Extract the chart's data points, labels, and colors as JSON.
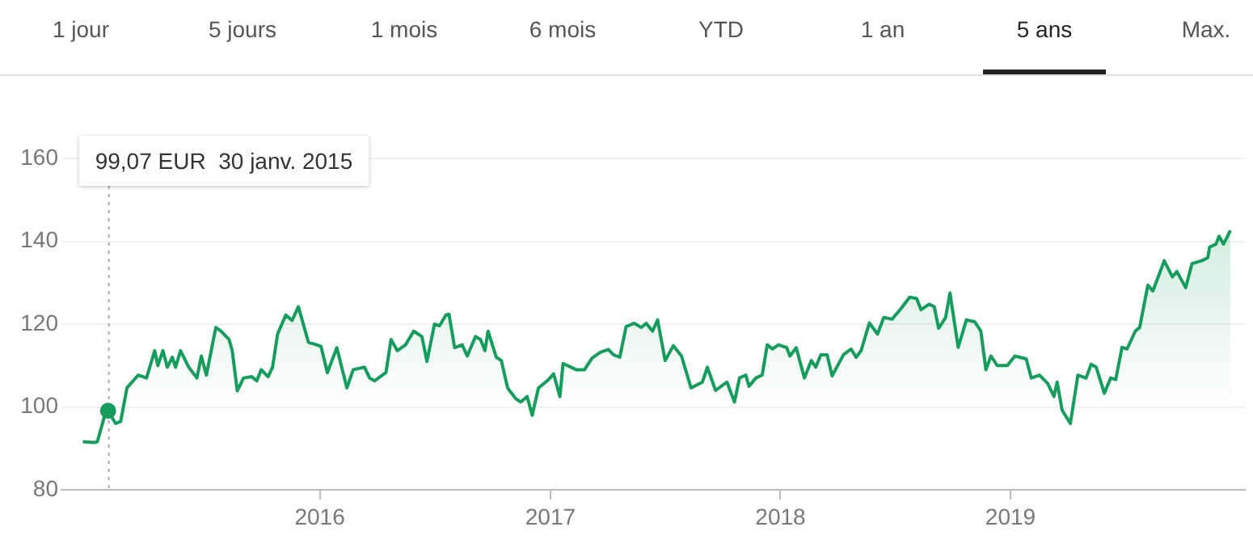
{
  "chart_data": {
    "type": "area",
    "annotations": [
      "1 jour",
      "5 jours",
      "1 mois",
      "6 mois",
      "YTD",
      "1 an",
      "5 ans",
      "Max."
    ],
    "ref_lines": [
      {
        "axis": "x",
        "value": "2015-01-30",
        "label": "99,07 EUR  30 janv. 2015",
        "color": "#aaaaaa",
        "line_style": "dotted"
      }
    ],
    "x": [
      "2014-12-21",
      "2015-01-08",
      "2015-01-13",
      "2015-01-26",
      "2015-01-30",
      "2015-02-11",
      "2015-02-19",
      "2015-03-01",
      "2015-03-19",
      "2015-04-01",
      "2015-04-14",
      "2015-04-19",
      "2015-04-27",
      "2015-05-04",
      "2015-05-12",
      "2015-05-17",
      "2015-05-25",
      "2015-06-07",
      "2015-06-20",
      "2015-06-27",
      "2015-07-05",
      "2015-07-20",
      "2015-07-28",
      "2015-08-10",
      "2015-08-15",
      "2015-08-23",
      "2015-09-02",
      "2015-09-15",
      "2015-09-23",
      "2015-09-30",
      "2015-10-11",
      "2015-10-18",
      "2015-10-26",
      "2015-11-08",
      "2015-11-18",
      "2015-11-28",
      "2015-12-14",
      "2015-12-27",
      "2016-01-03",
      "2016-01-13",
      "2016-01-28",
      "2016-02-13",
      "2016-02-23",
      "2016-03-12",
      "2016-03-20",
      "2016-03-28",
      "2016-04-15",
      "2016-04-23",
      "2016-05-03",
      "2016-05-16",
      "2016-05-29",
      "2016-06-11",
      "2016-06-19",
      "2016-07-01",
      "2016-07-09",
      "2016-07-19",
      "2016-07-24",
      "2016-08-02",
      "2016-08-14",
      "2016-08-22",
      "2016-09-04",
      "2016-09-12",
      "2016-09-19",
      "2016-09-24",
      "2016-10-07",
      "2016-10-15",
      "2016-10-25",
      "2016-11-07",
      "2016-11-15",
      "2016-11-25",
      "2016-12-03",
      "2016-12-13",
      "2016-12-29",
      "2017-01-06",
      "2017-01-16",
      "2017-01-21",
      "2017-02-11",
      "2017-02-24",
      "2017-03-08",
      "2017-03-21",
      "2017-04-03",
      "2017-04-11",
      "2017-04-21",
      "2017-05-01",
      "2017-05-14",
      "2017-05-25",
      "2017-06-02",
      "2017-06-12",
      "2017-06-20",
      "2017-07-02",
      "2017-07-15",
      "2017-07-28",
      "2017-08-12",
      "2017-08-30",
      "2017-09-07",
      "2017-09-20",
      "2017-10-08",
      "2017-10-20",
      "2017-10-28",
      "2017-11-07",
      "2017-11-12",
      "2017-11-23",
      "2017-12-03",
      "2017-12-11",
      "2017-12-19",
      "2017-12-29",
      "2018-01-11",
      "2018-01-16",
      "2018-01-26",
      "2018-02-08",
      "2018-02-19",
      "2018-02-26",
      "2018-03-06",
      "2018-03-16",
      "2018-03-24",
      "2018-04-11",
      "2018-04-23",
      "2018-05-01",
      "2018-05-09",
      "2018-05-22",
      "2018-06-04",
      "2018-06-14",
      "2018-06-27",
      "2018-07-10",
      "2018-07-25",
      "2018-08-05",
      "2018-08-12",
      "2018-08-25",
      "2018-09-02",
      "2018-09-09",
      "2018-09-20",
      "2018-09-27",
      "2018-10-10",
      "2018-10-23",
      "2018-11-05",
      "2018-11-15",
      "2018-11-23",
      "2018-12-01",
      "2018-12-11",
      "2018-12-27",
      "2019-01-08",
      "2019-01-26",
      "2019-02-03",
      "2019-02-16",
      "2019-03-01",
      "2019-03-11",
      "2019-03-16",
      "2019-03-24",
      "2019-04-06",
      "2019-04-18",
      "2019-05-01",
      "2019-05-09",
      "2019-05-17",
      "2019-05-30",
      "2019-06-09",
      "2019-06-17",
      "2019-06-27",
      "2019-07-05",
      "2019-07-18",
      "2019-07-25",
      "2019-08-07",
      "2019-08-15",
      "2019-09-02",
      "2019-09-15",
      "2019-09-22",
      "2019-10-06",
      "2019-10-16",
      "2019-10-31",
      "2019-11-10",
      "2019-11-13",
      "2019-11-23",
      "2019-11-28",
      "2019-12-05",
      "2019-12-16"
    ],
    "series": [
      {
        "color": "#169c5d",
        "values": [
          91.6,
          91.4,
          91.6,
          98.7,
          99.07,
          96,
          96.5,
          104.6,
          107.7,
          107,
          113.6,
          110,
          113.6,
          109.6,
          112,
          109.6,
          113.6,
          109.6,
          107,
          112.3,
          107.7,
          119.2,
          118.3,
          116.3,
          113.6,
          103.9,
          107,
          107.3,
          106.3,
          109,
          107.3,
          109.6,
          117.6,
          122.2,
          120.9,
          124.2,
          115.6,
          115,
          114.6,
          108.3,
          114.3,
          104.6,
          109,
          109.6,
          107,
          106.3,
          108.3,
          116.3,
          113.6,
          115,
          118.3,
          117,
          111,
          120,
          119.6,
          122.2,
          122.4,
          114.3,
          115,
          112.3,
          117,
          116.3,
          113.6,
          118.3,
          112,
          111.2,
          104.6,
          102,
          101.2,
          102.5,
          98,
          104.6,
          106.6,
          108,
          102.5,
          110.5,
          109,
          109,
          111.8,
          113.2,
          113.9,
          112.6,
          112,
          119.4,
          120.2,
          119.2,
          120.2,
          118.3,
          121,
          111.2,
          114.8,
          112.3,
          104.6,
          106,
          109.6,
          104,
          106,
          101.2,
          107,
          107.7,
          105,
          107,
          107.7,
          115,
          114,
          115,
          114.3,
          112.3,
          114.3,
          107,
          111.2,
          109.6,
          112.6,
          112.6,
          107.5,
          112.6,
          114,
          112,
          113.6,
          120.3,
          117.6,
          121.6,
          121.2,
          123.5,
          126.5,
          126.2,
          123.5,
          124.8,
          124.2,
          119,
          121.6,
          127.5,
          114.4,
          121,
          120.6,
          118.3,
          109,
          112.3,
          110,
          110,
          112.3,
          111.6,
          107,
          107.7,
          105.7,
          102.5,
          106,
          99.2,
          96,
          107.7,
          107,
          110.3,
          109.6,
          103.3,
          107,
          106.6,
          114.4,
          114,
          118.3,
          119.2,
          129.4,
          128,
          135.3,
          131.4,
          132.7,
          128.8,
          134.6,
          135.3,
          136,
          138.6,
          139.3,
          141.2,
          139.3,
          142.6
        ]
      }
    ],
    "xlim": [
      "2014-11-17",
      "2020-01-08"
    ],
    "xticks": [
      {
        "value": "2016-01-01",
        "label": "2016"
      },
      {
        "value": "2017-01-01",
        "label": "2017"
      },
      {
        "value": "2018-01-01",
        "label": "2018"
      },
      {
        "value": "2019-01-01",
        "label": "2019"
      }
    ],
    "ylim": [
      80,
      160
    ],
    "yticks": [
      80,
      100,
      120,
      140,
      160
    ],
    "grid": "y",
    "legend": false,
    "marker": "none",
    "line_style": "solid"
  }
}
